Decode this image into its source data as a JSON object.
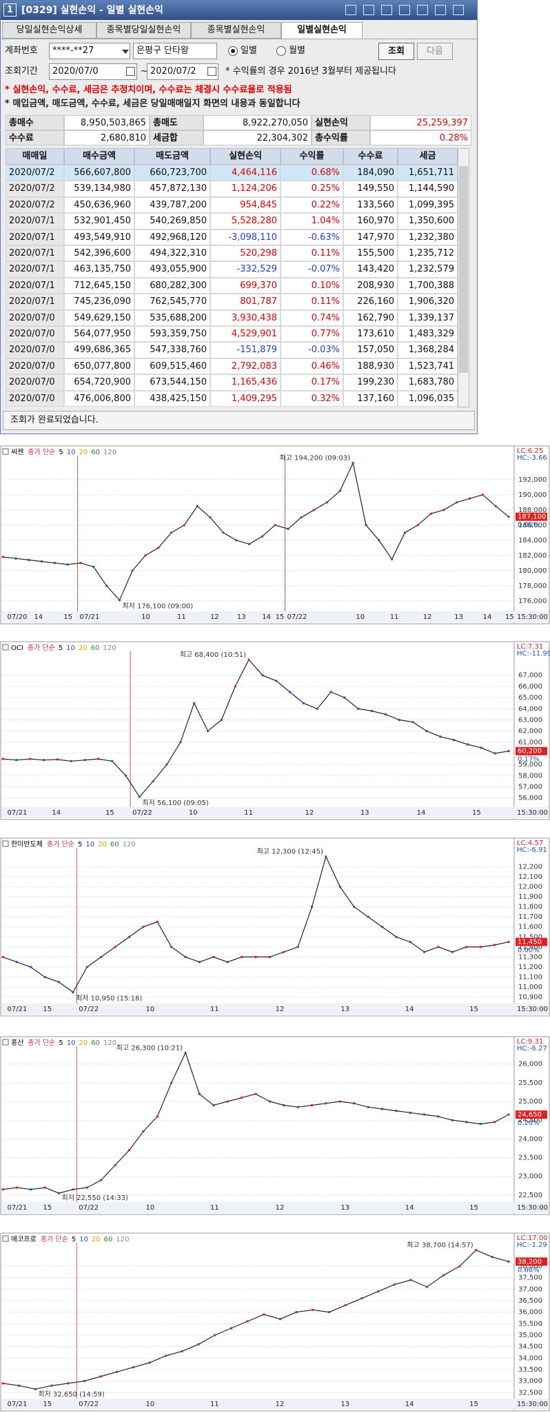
{
  "window": {
    "icon": "1",
    "title": "[0329] 실현손익 - 일별 실현손익",
    "tabs": [
      "당일실현손익상세",
      "종목별당일실현손익",
      "종목별실현손익",
      "일별실현손익"
    ],
    "selected_tab": 3,
    "form": {
      "account_label": "계좌번호",
      "account": "****-**27",
      "account_name": "은평구 단타왕",
      "period_options": [
        "일별",
        "월별"
      ],
      "selected_period": 0,
      "query_button": "조회",
      "next_button": "다음",
      "period_label": "조회기간",
      "from": "2020/07/0",
      "range_sep": "~",
      "to": "2020/07/2",
      "note": "* 수익률의 경우 2016년 3월부터 제공됩니다"
    },
    "notices": [
      "* 실현손익, 수수료, 세금은 추정치이며, 수수료는 체결시 수수료율로 적용됨",
      "* 매입금액, 매도금액, 수수료, 세금은 당일매매일지 화면의 내용과 동일합니다"
    ],
    "summary": [
      [
        "총매수",
        "8,950,503,865",
        "총매도",
        "8,922,270,050",
        "실현손익",
        "25,259,397"
      ],
      [
        "수수료",
        "2,680,810",
        "세금합",
        "22,304,302",
        "총수익률",
        "0.28%"
      ]
    ],
    "table": {
      "columns": [
        "매매일",
        "매수금액",
        "매도금액",
        "실현손익",
        "수익률",
        "수수료",
        "세금"
      ],
      "rows": [
        [
          "2020/07/2",
          "566,607,800",
          "660,723,700",
          "4,464,116",
          "0.68%",
          "184,090",
          "1,651,711"
        ],
        [
          "2020/07/2",
          "539,134,980",
          "457,872,130",
          "1,124,206",
          "0.25%",
          "149,550",
          "1,144,590"
        ],
        [
          "2020/07/2",
          "450,636,960",
          "439,787,200",
          "954,845",
          "0.22%",
          "133,560",
          "1,099,395"
        ],
        [
          "2020/07/1",
          "532,901,450",
          "540,269,850",
          "5,528,280",
          "1.04%",
          "160,970",
          "1,350,600"
        ],
        [
          "2020/07/1",
          "493,549,910",
          "492,968,120",
          "-3,098,110",
          "-0.63%",
          "147,970",
          "1,232,380"
        ],
        [
          "2020/07/1",
          "542,396,600",
          "494,322,310",
          "520,298",
          "0.11%",
          "155,500",
          "1,235,712"
        ],
        [
          "2020/07/1",
          "463,135,750",
          "493,055,900",
          "-332,529",
          "-0.07%",
          "143,420",
          "1,232,579"
        ],
        [
          "2020/07/1",
          "712,645,150",
          "680,282,300",
          "699,370",
          "0.10%",
          "208,930",
          "1,700,388"
        ],
        [
          "2020/07/1",
          "745,236,090",
          "762,545,770",
          "801,787",
          "0.11%",
          "226,160",
          "1,906,320"
        ],
        [
          "2020/07/0",
          "549,629,150",
          "535,688,200",
          "3,930,438",
          "0.74%",
          "162,790",
          "1,339,137"
        ],
        [
          "2020/07/0",
          "564,077,950",
          "593,359,750",
          "4,529,901",
          "0.77%",
          "173,610",
          "1,483,329"
        ],
        [
          "2020/07/0",
          "499,686,365",
          "547,338,760",
          "-151,879",
          "-0.03%",
          "157,050",
          "1,368,284"
        ],
        [
          "2020/07/0",
          "650,077,800",
          "609,515,460",
          "2,792,083",
          "0.46%",
          "188,930",
          "1,523,741"
        ],
        [
          "2020/07/0",
          "654,720,900",
          "673,544,150",
          "1,165,436",
          "0.17%",
          "199,230",
          "1,683,780"
        ],
        [
          "2020/07/0",
          "476,006,800",
          "438,425,150",
          "1,409,295",
          "0.32%",
          "137,160",
          "1,096,035"
        ]
      ]
    },
    "status": "조회가 완료되었습니다."
  },
  "chart_data": [
    {
      "type": "line",
      "title": "씨젠",
      "indicator": "종가 단순",
      "ma_periods": [
        "5",
        "10",
        "20",
        "60",
        "120"
      ],
      "ma_colors": [
        "#000000",
        "#1f4fd8",
        "#e0a000",
        "#2a8a2a",
        "#888888"
      ],
      "color": "#222222",
      "grid": true,
      "high_label": "최고 194,200 (09:03)",
      "low_label": "최저 176,100 (09:00)",
      "lc": "LC:6.25",
      "hc": "HC:-3.66",
      "price": {
        "value": 187100,
        "label": "187,100"
      },
      "change": "0.00%",
      "x_labels": [
        "07/20",
        "14",
        "15",
        "07/21",
        "10",
        "11",
        "12",
        "13",
        "14",
        "15",
        "07/22",
        "10",
        "11",
        "12",
        "13",
        "14",
        "15"
      ],
      "time_label": "15:30:00",
      "ylim": [
        174800,
        194800
      ],
      "yticks": [
        {
          "value": 176000,
          "label": "176,000"
        },
        {
          "value": 178000,
          "label": "178,000"
        },
        {
          "value": 180000,
          "label": "180,000"
        },
        {
          "value": 182000,
          "label": "182,000"
        },
        {
          "value": 184000,
          "label": "184,000"
        },
        {
          "value": 186000,
          "label": "186,000"
        },
        {
          "value": 188000,
          "label": "188,000"
        },
        {
          "value": 190000,
          "label": "190,000"
        },
        {
          "value": 192000,
          "label": "192,000"
        }
      ],
      "values": [
        181800,
        181600,
        181400,
        181200,
        181000,
        180800,
        181000,
        180500,
        178000,
        176100,
        180000,
        182000,
        183000,
        185000,
        186000,
        188500,
        187000,
        185000,
        184000,
        183500,
        184500,
        186000,
        185500,
        187000,
        188000,
        189000,
        190500,
        194200,
        186000,
        184000,
        181500,
        185000,
        186000,
        187500,
        188000,
        189000,
        189500,
        190000,
        188500,
        187100
      ]
    },
    {
      "type": "line",
      "title": "OCI",
      "indicator": "종가 단순",
      "ma_periods": [
        "5",
        "10",
        "20",
        "60",
        "120"
      ],
      "ma_colors": [
        "#000000",
        "#1f4fd8",
        "#e0a000",
        "#2a8a2a",
        "#888888"
      ],
      "color": "#222222",
      "grid": true,
      "high_label": "최고 68,400 (10:51)",
      "low_label": "최저 56,100 (09:05)",
      "lc": "LC:7.31",
      "hc": "HC:-11.99",
      "price": {
        "value": 60200,
        "label": "60,200"
      },
      "change": "0.17%",
      "x_labels": [
        "07/21",
        "14",
        "15",
        "07/22",
        "10",
        "11",
        "12",
        "13",
        "14",
        "15"
      ],
      "time_label": "15:30:00",
      "ylim": [
        55300,
        68900
      ],
      "yticks": [
        {
          "value": 56000,
          "label": "56,000"
        },
        {
          "value": 57000,
          "label": "57,000"
        },
        {
          "value": 58000,
          "label": "58,000"
        },
        {
          "value": 59000,
          "label": "59,000"
        },
        {
          "value": 60000,
          "label": "60,000"
        },
        {
          "value": 61000,
          "label": "61,000"
        },
        {
          "value": 62000,
          "label": "62,000"
        },
        {
          "value": 63000,
          "label": "63,000"
        },
        {
          "value": 64000,
          "label": "64,000"
        },
        {
          "value": 65000,
          "label": "65,000"
        },
        {
          "value": 66000,
          "label": "66,000"
        },
        {
          "value": 67000,
          "label": "67,000"
        }
      ],
      "values": [
        59500,
        59400,
        59500,
        59400,
        59450,
        59300,
        59400,
        59500,
        59300,
        58000,
        56100,
        57500,
        59000,
        61000,
        64500,
        62000,
        63000,
        66000,
        68400,
        67000,
        66500,
        65500,
        64500,
        64000,
        65500,
        65000,
        64000,
        63800,
        63500,
        63000,
        62800,
        62000,
        61500,
        61200,
        60800,
        60500,
        60000,
        60200
      ]
    },
    {
      "type": "line",
      "title": "한미반도체",
      "indicator": "종가 단순",
      "ma_periods": [
        "5",
        "10",
        "20",
        "60",
        "120"
      ],
      "ma_colors": [
        "#000000",
        "#1f4fd8",
        "#e0a000",
        "#2a8a2a",
        "#888888"
      ],
      "color": "#222222",
      "grid": true,
      "high_label": "최고 12,300 (12:45)",
      "low_label": "최저 10,950 (15:18)",
      "lc": "LC:4.57",
      "hc": "HC:-6.91",
      "price": {
        "value": 11450,
        "label": "11,450"
      },
      "change": "0.00%",
      "x_labels": [
        "07/21",
        "15",
        "07/22",
        "10",
        "11",
        "12",
        "13",
        "14",
        "15"
      ],
      "time_label": "15:30:00",
      "ylim": [
        10850,
        12360
      ],
      "yticks": [
        {
          "value": 10900,
          "label": "10,900"
        },
        {
          "value": 11000,
          "label": "11,000"
        },
        {
          "value": 11100,
          "label": "11,100"
        },
        {
          "value": 11200,
          "label": "11,200"
        },
        {
          "value": 11300,
          "label": "11,300"
        },
        {
          "value": 11400,
          "label": "11,400"
        },
        {
          "value": 11500,
          "label": "11,500"
        },
        {
          "value": 11600,
          "label": "11,600"
        },
        {
          "value": 11700,
          "label": "11,700"
        },
        {
          "value": 11800,
          "label": "11,800"
        },
        {
          "value": 11900,
          "label": "11,900"
        },
        {
          "value": 12000,
          "label": "12,000"
        },
        {
          "value": 12100,
          "label": "12,100"
        },
        {
          "value": 12200,
          "label": "12,200"
        }
      ],
      "values": [
        11300,
        11250,
        11200,
        11100,
        11050,
        10950,
        11200,
        11300,
        11400,
        11500,
        11600,
        11650,
        11400,
        11300,
        11250,
        11300,
        11250,
        11300,
        11300,
        11300,
        11350,
        11400,
        11800,
        12300,
        12000,
        11800,
        11700,
        11600,
        11500,
        11450,
        11350,
        11400,
        11350,
        11400,
        11400,
        11420,
        11450
      ]
    },
    {
      "type": "line",
      "title": "풍산",
      "indicator": "종가 단순",
      "ma_periods": [
        "5",
        "10",
        "20",
        "60",
        "120"
      ],
      "ma_colors": [
        "#000000",
        "#1f4fd8",
        "#e0a000",
        "#2a8a2a",
        "#888888"
      ],
      "color": "#222222",
      "grid": true,
      "high_label": "최고 26,300 (10:21)",
      "low_label": "최저 22,550 (14:33)",
      "lc": "LC:9.31",
      "hc": "HC:-6.27",
      "price": {
        "value": 24650,
        "label": "24,650"
      },
      "change": "0.20%",
      "x_labels": [
        "07/21",
        "15",
        "07/22",
        "10",
        "11",
        "12",
        "13",
        "14",
        "15"
      ],
      "time_label": "15:30:00",
      "ylim": [
        22350,
        26400
      ],
      "yticks": [
        {
          "value": 22500,
          "label": "22,500"
        },
        {
          "value": 23000,
          "label": "23,000"
        },
        {
          "value": 23500,
          "label": "23,500"
        },
        {
          "value": 24000,
          "label": "24,000"
        },
        {
          "value": 24500,
          "label": "24,500"
        },
        {
          "value": 25000,
          "label": "25,000"
        },
        {
          "value": 25500,
          "label": "25,500"
        },
        {
          "value": 26000,
          "label": "26,000"
        }
      ],
      "values": [
        22650,
        22700,
        22650,
        22700,
        22550,
        22650,
        22700,
        22900,
        23300,
        23700,
        24200,
        24600,
        25500,
        26300,
        25200,
        24900,
        25000,
        25100,
        25200,
        25000,
        24900,
        24850,
        24900,
        24950,
        25000,
        24950,
        24850,
        24800,
        24750,
        24700,
        24650,
        24600,
        24500,
        24450,
        24400,
        24450,
        24650
      ]
    },
    {
      "type": "line",
      "title": "에코프로",
      "indicator": "종가 단순",
      "ma_periods": [
        "5",
        "10",
        "20",
        "60",
        "120"
      ],
      "ma_colors": [
        "#000000",
        "#1f4fd8",
        "#e0a000",
        "#2a8a2a",
        "#888888"
      ],
      "color": "#222222",
      "grid": true,
      "high_label": "최고 38,700 (14:57)",
      "low_label": "최저 32,650 (14:59)",
      "lc": "LC:17.00",
      "hc": "HC:-1.29",
      "price": {
        "value": 38200,
        "label": "38,200"
      },
      "change": "0.66%",
      "x_labels": [
        "07/21",
        "15",
        "07/22",
        "10",
        "11",
        "12",
        "13",
        "14",
        "15"
      ],
      "time_label": "15:30:00",
      "ylim": [
        32300,
        38900
      ],
      "yticks": [
        {
          "value": 32500,
          "label": "32,500"
        },
        {
          "value": 33000,
          "label": "33,000"
        },
        {
          "value": 33500,
          "label": "33,500"
        },
        {
          "value": 34000,
          "label": "34,000"
        },
        {
          "value": 34500,
          "label": "34,500"
        },
        {
          "value": 35000,
          "label": "35,000"
        },
        {
          "value": 35500,
          "label": "35,500"
        },
        {
          "value": 36000,
          "label": "36,000"
        },
        {
          "value": 36500,
          "label": "36,500"
        },
        {
          "value": 37000,
          "label": "37,000"
        },
        {
          "value": 37500,
          "label": "37,500"
        },
        {
          "value": 38000,
          "label": "38,000"
        }
      ],
      "values": [
        32900,
        32800,
        32650,
        32800,
        32900,
        33000,
        33200,
        33400,
        33600,
        33800,
        34100,
        34300,
        34600,
        35000,
        35300,
        35600,
        35900,
        35700,
        36000,
        36100,
        36000,
        36300,
        36600,
        36900,
        37200,
        37400,
        37100,
        37600,
        38000,
        38700,
        38400,
        38200
      ]
    }
  ]
}
